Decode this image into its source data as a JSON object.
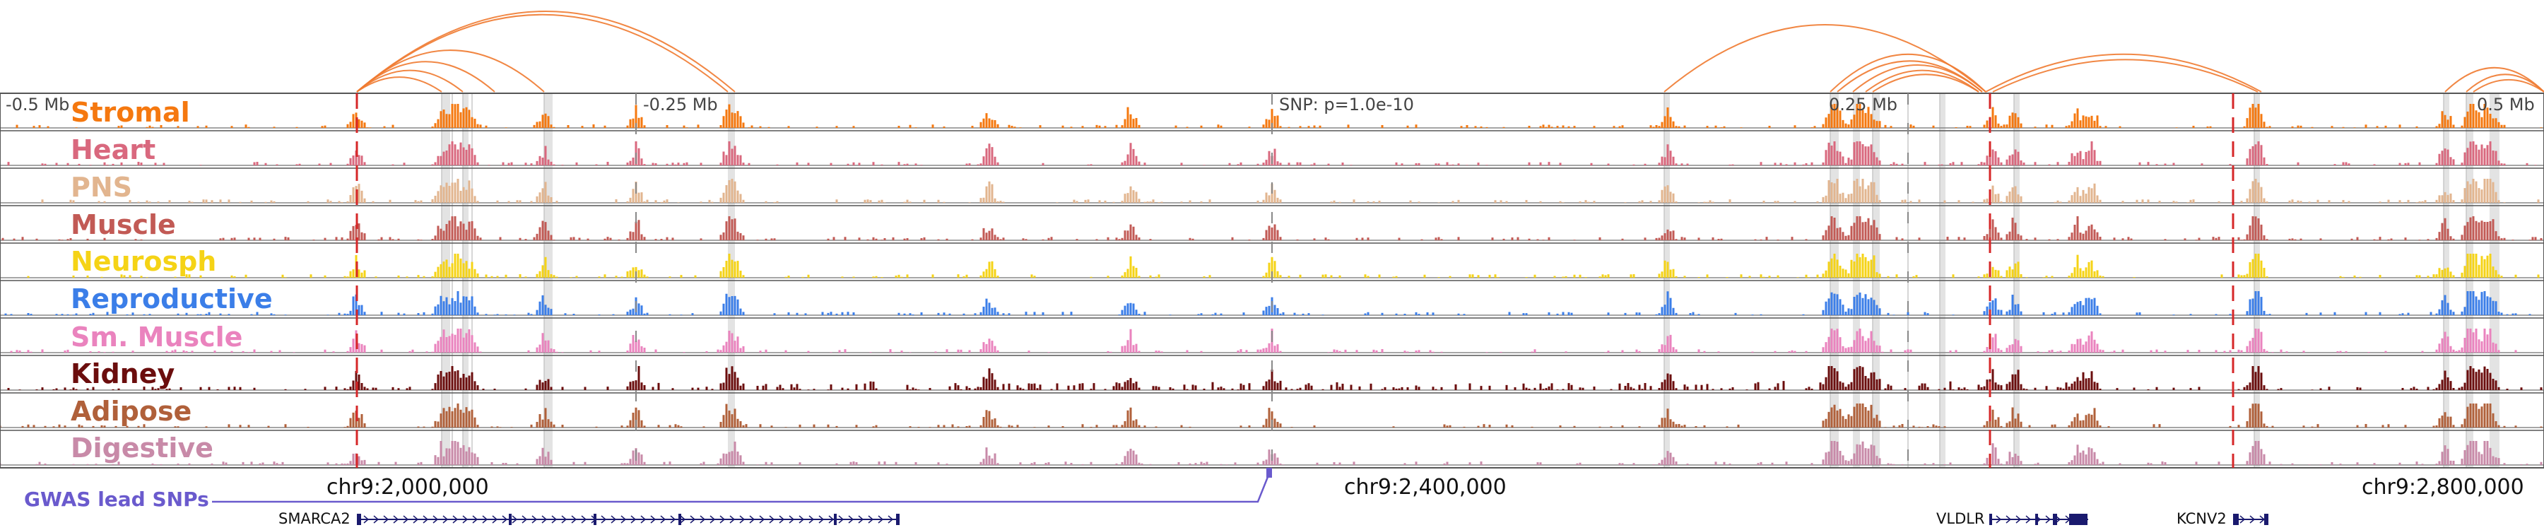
{
  "colors": {
    "arc": "#f07a30",
    "highlight": "#d9d9d9",
    "baseline": "#888888",
    "border": "#555555",
    "snp_line": "#d62728",
    "gwas": "#6a5acd",
    "gene": "#1a1a6e"
  },
  "scale": {
    "left_end": "-0.5 Mb",
    "left_mid": "-0.25 Mb",
    "snp": "SNP: p=1.0e-10",
    "right_mid": "0.25 Mb",
    "right_end": "0.5 Mb"
  },
  "tracks": [
    {
      "name": "Stromal",
      "color": "#f5780f"
    },
    {
      "name": "Heart",
      "color": "#d9687e"
    },
    {
      "name": "PNS",
      "color": "#e2b58f"
    },
    {
      "name": "Muscle",
      "color": "#c25a55"
    },
    {
      "name": "Neurosph",
      "color": "#f5d316"
    },
    {
      "name": "Reproductive",
      "color": "#3b7ee8"
    },
    {
      "name": "Sm. Muscle",
      "color": "#ea83be"
    },
    {
      "name": "Kidney",
      "color": "#6b0d0d"
    },
    {
      "name": "Adipose",
      "color": "#b0603a"
    },
    {
      "name": "Digestive",
      "color": "#c88aa8"
    }
  ],
  "coordinates": [
    "chr9:2,000,000",
    "chr9:2,400,000",
    "chr9:2,800,000"
  ],
  "gwas": {
    "label": "GWAS lead SNPs"
  },
  "genes": [
    {
      "name": "SMARCA2",
      "strand": "+"
    },
    {
      "name": "VLDLR",
      "strand": "+"
    },
    {
      "name": "KCNV2",
      "strand": "+"
    }
  ]
}
